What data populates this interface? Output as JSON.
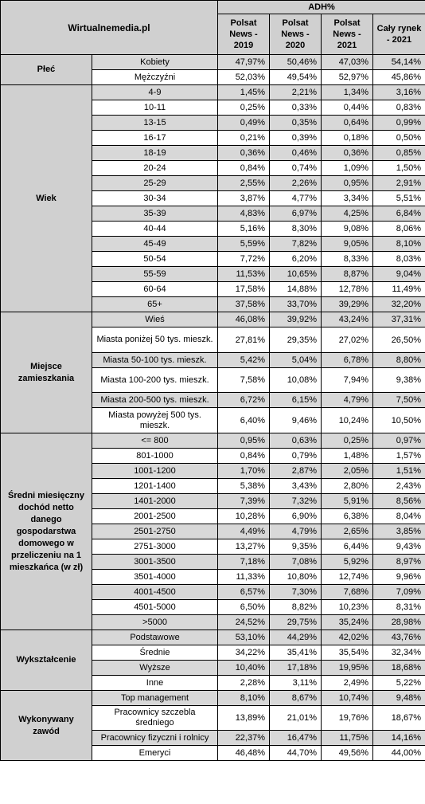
{
  "header": {
    "brand": "Wirtualnemedia.pl",
    "metric": "ADH%",
    "columns": [
      "Polsat News - 2019",
      "Polsat News - 2020",
      "Polsat News - 2021",
      "Cały rynek - 2021"
    ]
  },
  "groups": [
    {
      "label": "Płeć",
      "rows": [
        {
          "label": "Kobiety",
          "values": [
            "47,97%",
            "50,46%",
            "47,03%",
            "54,14%"
          ]
        },
        {
          "label": "Mężczyźni",
          "values": [
            "52,03%",
            "49,54%",
            "52,97%",
            "45,86%"
          ]
        }
      ]
    },
    {
      "label": "Wiek",
      "rows": [
        {
          "label": "4-9",
          "values": [
            "1,45%",
            "2,21%",
            "1,34%",
            "3,16%"
          ]
        },
        {
          "label": "10-11",
          "values": [
            "0,25%",
            "0,33%",
            "0,44%",
            "0,83%"
          ]
        },
        {
          "label": "13-15",
          "values": [
            "0,49%",
            "0,35%",
            "0,64%",
            "0,99%"
          ]
        },
        {
          "label": "16-17",
          "values": [
            "0,21%",
            "0,39%",
            "0,18%",
            "0,50%"
          ]
        },
        {
          "label": "18-19",
          "values": [
            "0,36%",
            "0,46%",
            "0,36%",
            "0,85%"
          ]
        },
        {
          "label": "20-24",
          "values": [
            "0,84%",
            "0,74%",
            "1,09%",
            "1,50%"
          ]
        },
        {
          "label": "25-29",
          "values": [
            "2,55%",
            "2,26%",
            "0,95%",
            "2,91%"
          ]
        },
        {
          "label": "30-34",
          "values": [
            "3,87%",
            "4,77%",
            "3,34%",
            "5,51%"
          ]
        },
        {
          "label": "35-39",
          "values": [
            "4,83%",
            "6,97%",
            "4,25%",
            "6,84%"
          ]
        },
        {
          "label": "40-44",
          "values": [
            "5,16%",
            "8,30%",
            "9,08%",
            "8,06%"
          ]
        },
        {
          "label": "45-49",
          "values": [
            "5,59%",
            "7,82%",
            "9,05%",
            "8,10%"
          ]
        },
        {
          "label": "50-54",
          "values": [
            "7,72%",
            "6,20%",
            "8,33%",
            "8,03%"
          ]
        },
        {
          "label": "55-59",
          "values": [
            "11,53%",
            "10,65%",
            "8,87%",
            "9,04%"
          ]
        },
        {
          "label": "60-64",
          "values": [
            "17,58%",
            "14,88%",
            "12,78%",
            "11,49%"
          ]
        },
        {
          "label": "65+",
          "values": [
            "37,58%",
            "33,70%",
            "39,29%",
            "32,20%"
          ]
        }
      ]
    },
    {
      "label": "Miejsce zamieszkania",
      "rows": [
        {
          "label": "Wieś",
          "values": [
            "46,08%",
            "39,92%",
            "43,24%",
            "37,31%"
          ]
        },
        {
          "label": "Miasta poniżej 50 tys. mieszk.",
          "values": [
            "27,81%",
            "29,35%",
            "27,02%",
            "26,50%"
          ]
        },
        {
          "label": "Miasta 50-100 tys. mieszk.",
          "values": [
            "5,42%",
            "5,04%",
            "6,78%",
            "8,80%"
          ]
        },
        {
          "label": "Miasta 100-200 tys. mieszk.",
          "values": [
            "7,58%",
            "10,08%",
            "7,94%",
            "9,38%"
          ]
        },
        {
          "label": "Miasta 200-500 tys. mieszk.",
          "values": [
            "6,72%",
            "6,15%",
            "4,79%",
            "7,50%"
          ]
        },
        {
          "label": "Miasta powyżej 500 tys. mieszk.",
          "values": [
            "6,40%",
            "9,46%",
            "10,24%",
            "10,50%"
          ]
        }
      ]
    },
    {
      "label": "Średni miesięczny dochód netto danego gospodarstwa domowego w przeliczeniu na 1 mieszkańca (w zł)",
      "rows": [
        {
          "label": "<= 800",
          "values": [
            "0,95%",
            "0,63%",
            "0,25%",
            "0,97%"
          ]
        },
        {
          "label": "801-1000",
          "values": [
            "0,84%",
            "0,79%",
            "1,48%",
            "1,57%"
          ]
        },
        {
          "label": "1001-1200",
          "values": [
            "1,70%",
            "2,87%",
            "2,05%",
            "1,51%"
          ]
        },
        {
          "label": "1201-1400",
          "values": [
            "5,38%",
            "3,43%",
            "2,80%",
            "2,43%"
          ]
        },
        {
          "label": "1401-2000",
          "values": [
            "7,39%",
            "7,32%",
            "5,91%",
            "8,56%"
          ]
        },
        {
          "label": "2001-2500",
          "values": [
            "10,28%",
            "6,90%",
            "6,38%",
            "8,04%"
          ]
        },
        {
          "label": "2501-2750",
          "values": [
            "4,49%",
            "4,79%",
            "2,65%",
            "3,85%"
          ]
        },
        {
          "label": "2751-3000",
          "values": [
            "13,27%",
            "9,35%",
            "6,44%",
            "9,43%"
          ]
        },
        {
          "label": "3001-3500",
          "values": [
            "7,18%",
            "7,08%",
            "5,92%",
            "8,97%"
          ]
        },
        {
          "label": "3501-4000",
          "values": [
            "11,33%",
            "10,80%",
            "12,74%",
            "9,96%"
          ]
        },
        {
          "label": "4001-4500",
          "values": [
            "6,57%",
            "7,30%",
            "7,68%",
            "7,09%"
          ]
        },
        {
          "label": "4501-5000",
          "values": [
            "6,50%",
            "8,82%",
            "10,23%",
            "8,31%"
          ]
        },
        {
          "label": ">5000",
          "values": [
            "24,52%",
            "29,75%",
            "35,24%",
            "28,98%"
          ]
        }
      ]
    },
    {
      "label": "Wykształcenie",
      "rows": [
        {
          "label": "Podstawowe",
          "values": [
            "53,10%",
            "44,29%",
            "42,02%",
            "43,76%"
          ]
        },
        {
          "label": "Średnie",
          "values": [
            "34,22%",
            "35,41%",
            "35,54%",
            "32,34%"
          ]
        },
        {
          "label": "Wyższe",
          "values": [
            "10,40%",
            "17,18%",
            "19,95%",
            "18,68%"
          ]
        },
        {
          "label": "Inne",
          "values": [
            "2,28%",
            "3,11%",
            "2,49%",
            "5,22%"
          ]
        }
      ]
    },
    {
      "label": "Wykonywany zawód",
      "rows": [
        {
          "label": "Top management",
          "values": [
            "8,10%",
            "8,67%",
            "10,74%",
            "9,48%"
          ]
        },
        {
          "label": "Pracownicy szczebla średniego",
          "values": [
            "13,89%",
            "21,01%",
            "19,76%",
            "18,67%"
          ]
        },
        {
          "label": "Pracownicy fizyczni i rolnicy",
          "values": [
            "22,37%",
            "16,47%",
            "11,75%",
            "14,16%"
          ]
        },
        {
          "label": "Emeryci",
          "values": [
            "46,48%",
            "44,70%",
            "49,56%",
            "44,00%"
          ]
        }
      ]
    }
  ]
}
